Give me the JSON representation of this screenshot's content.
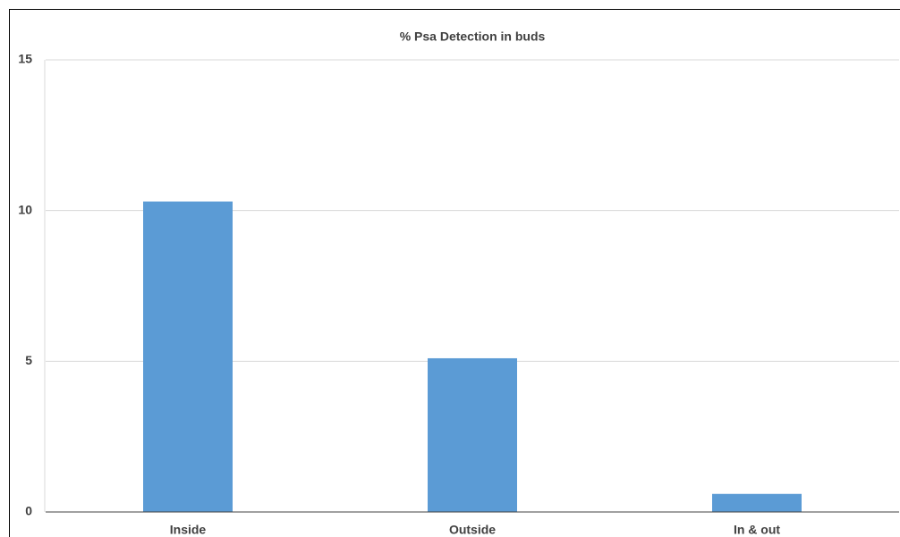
{
  "chart_data": {
    "type": "bar",
    "title": "% Psa Detection in buds",
    "categories": [
      "Inside",
      "Outside",
      "In & out"
    ],
    "values": [
      10.3,
      5.1,
      0.6
    ],
    "color": "#5b9bd5",
    "ylim": [
      0,
      15
    ],
    "yticks": [
      0,
      5,
      10,
      15
    ],
    "grid": true
  }
}
